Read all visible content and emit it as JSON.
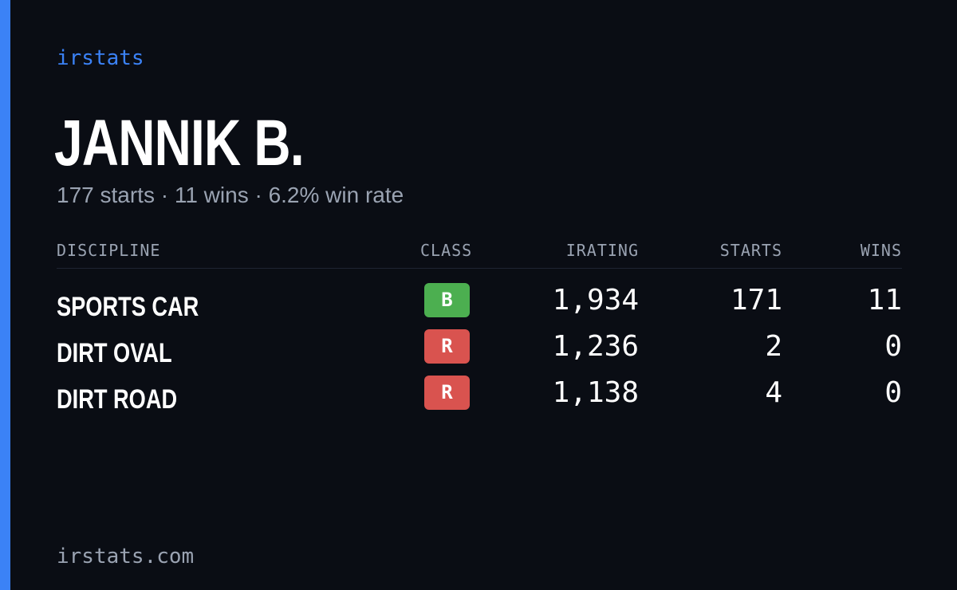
{
  "header": {
    "brand": "irstats",
    "driver_name": "JANNIK B.",
    "summary": "177 starts · 11 wins · 6.2% win rate"
  },
  "table": {
    "columns": {
      "discipline": "DISCIPLINE",
      "class": "CLASS",
      "irating": "IRATING",
      "starts": "STARTS",
      "wins": "WINS"
    },
    "rows": [
      {
        "discipline": "SPORTS CAR",
        "class": "B",
        "class_color": "#4caf50",
        "irating": "1,934",
        "starts": "171",
        "wins": "11"
      },
      {
        "discipline": "DIRT OVAL",
        "class": "R",
        "class_color": "#d9534f",
        "irating": "1,236",
        "starts": "2",
        "wins": "0"
      },
      {
        "discipline": "DIRT ROAD",
        "class": "R",
        "class_color": "#d9534f",
        "irating": "1,138",
        "starts": "4",
        "wins": "0"
      }
    ]
  },
  "footer": {
    "site": "irstats.com"
  },
  "colors": {
    "accent": "#3b82f6",
    "background": "#0a0d14",
    "muted_text": "#9aa3b2"
  }
}
